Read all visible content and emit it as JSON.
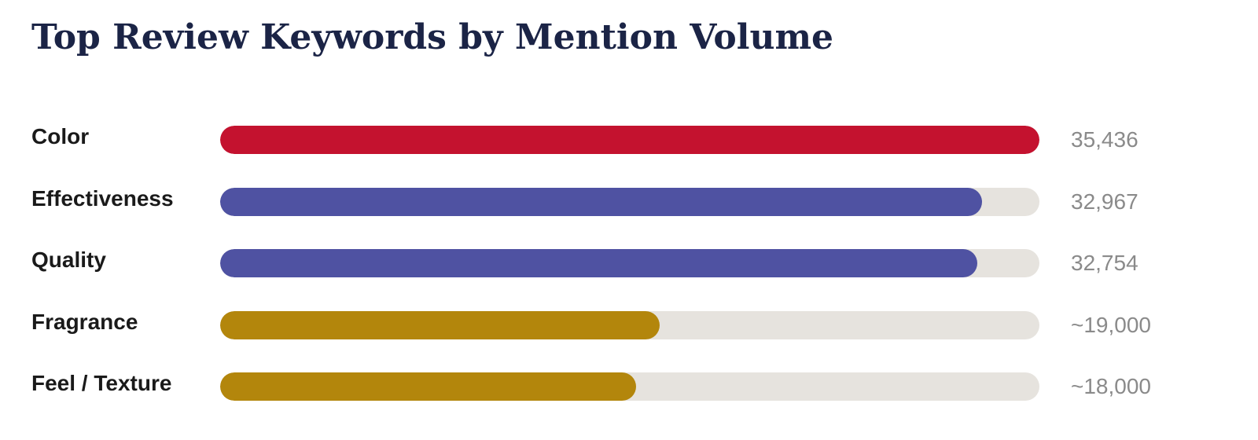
{
  "chart_data": {
    "type": "bar",
    "orientation": "horizontal",
    "title": "Top Review Keywords by Mention Volume",
    "categories": [
      "Color",
      "Effectiveness",
      "Quality",
      "Fragrance",
      "Feel / Texture"
    ],
    "values": [
      35436,
      32967,
      32754,
      19000,
      18000
    ],
    "value_labels": [
      "35,436",
      "32,967",
      "32,754",
      "~19,000",
      "~18,000"
    ],
    "bar_colors": [
      "#c4122f",
      "#4f52a2",
      "#4f52a2",
      "#b3860c",
      "#b3860c"
    ],
    "track_color": "#e6e3de",
    "xlim": [
      0,
      35436
    ],
    "grid": false,
    "legend": "none"
  }
}
